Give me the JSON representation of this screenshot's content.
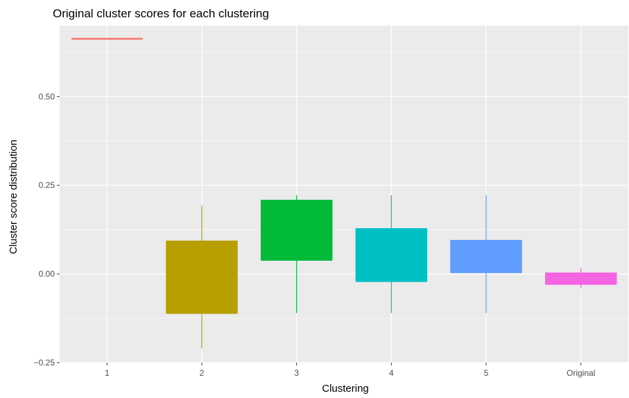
{
  "chart_data": {
    "type": "boxplot",
    "title": "Original cluster scores for each clustering",
    "xlabel": "Clustering",
    "ylabel": "Cluster score distribution",
    "ylim": [
      -0.25,
      0.7
    ],
    "y_ticks": [
      -0.25,
      0.0,
      0.25,
      0.5
    ],
    "y_tick_labels": [
      "−0.25",
      "0.00",
      "0.25",
      "0.50"
    ],
    "grid": true,
    "legend": "none",
    "categories": [
      "1",
      "2",
      "3",
      "4",
      "5",
      "Original"
    ],
    "boxes": [
      {
        "category": "1",
        "min": 0.663,
        "q1": 0.663,
        "median": 0.663,
        "q3": 0.663,
        "max": 0.663,
        "color": "#F8766D"
      },
      {
        "category": "2",
        "min": -0.21,
        "q1": -0.11,
        "median": -0.11,
        "q3": 0.093,
        "max": 0.193,
        "color": "#B79F00"
      },
      {
        "category": "3",
        "min": -0.11,
        "q1": 0.04,
        "median": 0.04,
        "q3": 0.208,
        "max": 0.222,
        "color": "#00BA38"
      },
      {
        "category": "4",
        "min": -0.11,
        "q1": -0.02,
        "median": -0.02,
        "q3": 0.128,
        "max": 0.222,
        "color": "#00BFC4"
      },
      {
        "category": "5",
        "min": -0.11,
        "q1": 0.005,
        "median": 0.005,
        "q3": 0.095,
        "max": 0.222,
        "color": "#619CFF"
      },
      {
        "category": "Original",
        "min": -0.04,
        "q1": -0.028,
        "median": -0.028,
        "q3": 0.003,
        "max": 0.017,
        "color": "#F564E3"
      }
    ]
  }
}
